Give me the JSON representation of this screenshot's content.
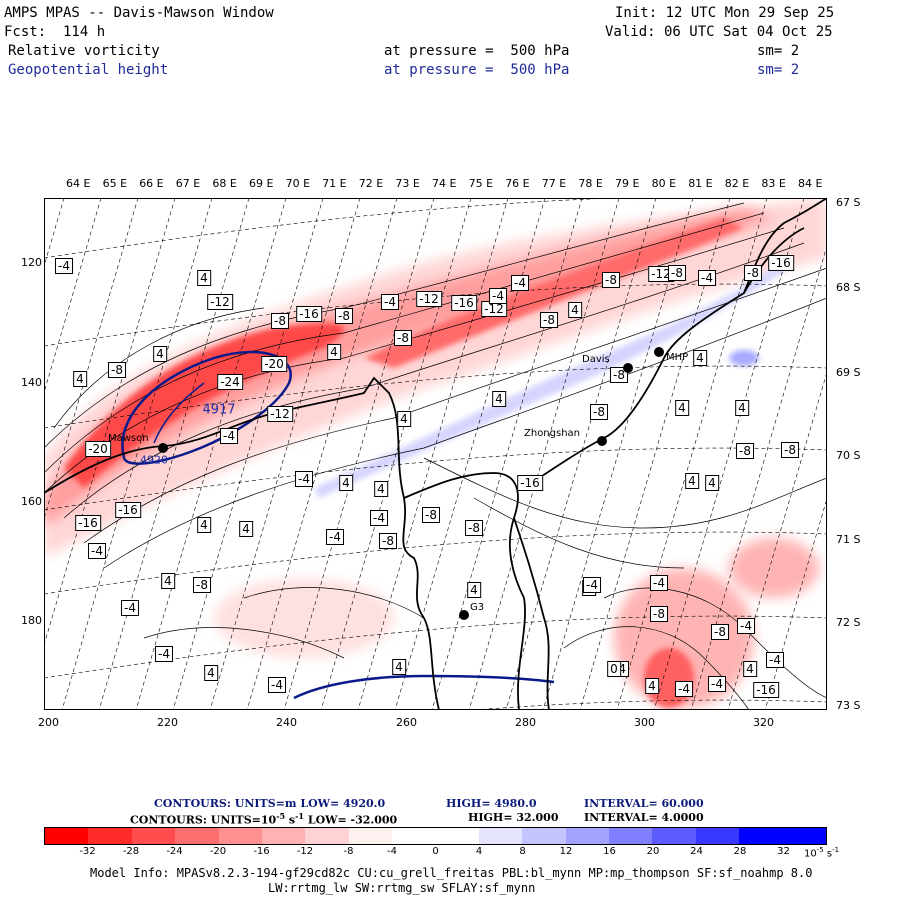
{
  "header": {
    "line1_left": "AMPS MPAS -- Davis-Mawson Window",
    "line1_right": "Init: 12 UTC Mon 29 Sep 25",
    "line2_left": "Fcst:  114 h",
    "line2_right": "Valid: 06 UTC Sat 04 Oct 25",
    "field1": {
      "name": "Relative vorticity",
      "level": "at pressure =  500 hPa",
      "smooth": "sm= 2"
    },
    "field2": {
      "name": "Geopotential height",
      "level": "at pressure =  500 hPa",
      "smooth": "sm= 2"
    }
  },
  "map": {
    "top_lon_labels": [
      "64 E",
      "65 E",
      "66 E",
      "67 E",
      "68 E",
      "69 E",
      "70 E",
      "71 E",
      "72 E",
      "73 E",
      "74 E",
      "75 E",
      "76 E",
      "77 E",
      "78 E",
      "79 E",
      "80 E",
      "81 E",
      "82 E",
      "83 E",
      "84 E"
    ],
    "right_lat_labels": [
      "67 S",
      "68 S",
      "69 S",
      "70 S",
      "71 S",
      "72 S",
      "73 S"
    ],
    "left_y_labels": [
      "120",
      "140",
      "160",
      "180"
    ],
    "bottom_x_labels": [
      "200",
      "220",
      "240",
      "260",
      "280",
      "300",
      "320"
    ],
    "stations": [
      {
        "name": "Davis",
        "key": "davis"
      },
      {
        "name": "MHP",
        "key": "mhp"
      },
      {
        "name": "Zhongshan",
        "key": "zhongshan"
      },
      {
        "name": "Mawson",
        "key": "mawson"
      },
      {
        "name": "G3",
        "key": "g3"
      }
    ],
    "height_labels": [
      "4917",
      "4920"
    ],
    "vorticity_labels": [
      "-4",
      "4",
      "-12",
      "-8",
      "-16",
      "-8",
      "-4",
      "-12",
      "-16",
      "-12",
      "-8",
      "4",
      "-8",
      "-12",
      "-8",
      "-4",
      "-8",
      "-16",
      "-20",
      "-24",
      "-12",
      "4",
      "-8",
      "4",
      "4",
      "-8",
      "-4",
      "-4",
      "-8",
      "4",
      "4",
      "4",
      "-8",
      "-8",
      "-8",
      "4",
      "4",
      "-4",
      "-4",
      "4",
      "4",
      "-20",
      "-16",
      "-16",
      "4",
      "-4",
      "4",
      "-4",
      "-8",
      "-4",
      "-8",
      "-8",
      "-16",
      "4",
      "4",
      "-4",
      "-4",
      "-8",
      "4",
      "-4",
      "4",
      "-4",
      "4",
      "4",
      "-4",
      "4",
      "-4",
      "-4",
      "-16",
      "-4",
      "-4",
      "-8",
      "-4",
      "4",
      "-8",
      "4",
      "0"
    ]
  },
  "contours_info": {
    "line1": {
      "label": "CONTOURS:  UNITS=m  LOW=  4920.0",
      "high": "HIGH=  4980.0",
      "interval": "INTERVAL=   60.000"
    },
    "line2": {
      "label": "CONTOURS:  UNITS=10",
      "exp": "-5",
      "unit_tail": " s",
      "unit_exp": "-1",
      "low": "  LOW=  -32.000",
      "high": "HIGH=   32.000",
      "interval": "INTERVAL=    4.0000"
    }
  },
  "colorbar": {
    "colors": [
      "#ff0000",
      "#ff2a2a",
      "#ff4d4d",
      "#ff6e6e",
      "#ff9090",
      "#ffb2b2",
      "#ffd3d3",
      "#fff0f0",
      "#ffffff",
      "#ffffff",
      "#e4e4ff",
      "#c4c4ff",
      "#a2a2ff",
      "#8080ff",
      "#5d5dff",
      "#3838ff",
      "#0000ff",
      "#0000ff"
    ],
    "ticks": [
      "-32",
      "-28",
      "-24",
      "-20",
      "-16",
      "-12",
      "-8",
      "-4",
      "0",
      "4",
      "8",
      "12",
      "16",
      "20",
      "24",
      "28",
      "32"
    ],
    "unit": "10",
    "unit_exp": "-5",
    "unit_tail": " s",
    "unit_tail_exp": "-1"
  },
  "footer": {
    "line1": "Model Info: MPASv8.2.3-194-gf29cd82c CU:cu_grell_freitas PBL:bl_mynn MP:mp_thompson SF:sf_noahmp 8.0",
    "line2": "LW:rrtmg_lw SW:rrtmg_sw SFLAY:sf_mynn"
  }
}
